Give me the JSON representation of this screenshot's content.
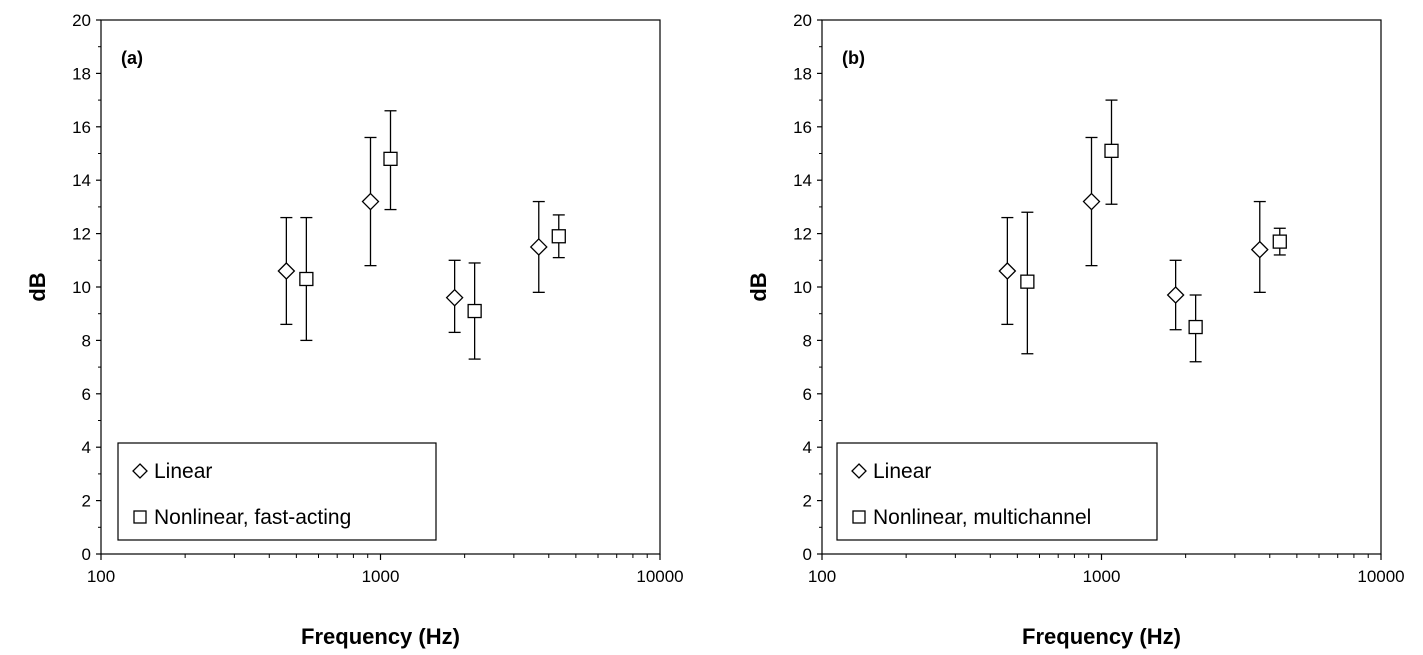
{
  "chart_data": [
    {
      "type": "scatter",
      "panel_label": "(a)",
      "xlabel": "Frequency (Hz)",
      "ylabel": "dB",
      "xscale": "log",
      "xlim": [
        100,
        10000
      ],
      "ylim": [
        0,
        20
      ],
      "x_ticks": [
        "100",
        "1000",
        "10000"
      ],
      "y_ticks": [
        "0",
        "2",
        "4",
        "6",
        "8",
        "10",
        "12",
        "14",
        "16",
        "18",
        "20"
      ],
      "error_bars": true,
      "grid": false,
      "legend_position": "bottom-left",
      "series": [
        {
          "name": "Linear",
          "marker": "diamond",
          "x": [
            500,
            1000,
            2000,
            4000
          ],
          "y": [
            10.6,
            13.2,
            9.6,
            11.5
          ],
          "err_low": [
            8.6,
            10.8,
            8.3,
            9.8
          ],
          "err_high": [
            12.6,
            15.6,
            11.0,
            13.2
          ]
        },
        {
          "name": "Nonlinear, fast-acting",
          "marker": "square",
          "x": [
            500,
            1000,
            2000,
            4000
          ],
          "y": [
            10.3,
            14.8,
            9.1,
            11.9
          ],
          "err_low": [
            8.0,
            12.9,
            7.3,
            11.1
          ],
          "err_high": [
            12.6,
            16.6,
            10.9,
            12.7
          ]
        }
      ]
    },
    {
      "type": "scatter",
      "panel_label": "(b)",
      "xlabel": "Frequency (Hz)",
      "ylabel": "dB",
      "xscale": "log",
      "xlim": [
        100,
        10000
      ],
      "ylim": [
        0,
        20
      ],
      "x_ticks": [
        "100",
        "1000",
        "10000"
      ],
      "y_ticks": [
        "0",
        "2",
        "4",
        "6",
        "8",
        "10",
        "12",
        "14",
        "16",
        "18",
        "20"
      ],
      "error_bars": true,
      "grid": false,
      "legend_position": "bottom-left",
      "series": [
        {
          "name": "Linear",
          "marker": "diamond",
          "x": [
            500,
            1000,
            2000,
            4000
          ],
          "y": [
            10.6,
            13.2,
            9.7,
            11.4
          ],
          "err_low": [
            8.6,
            10.8,
            8.4,
            9.8
          ],
          "err_high": [
            12.6,
            15.6,
            11.0,
            13.2
          ]
        },
        {
          "name": "Nonlinear, multichannel",
          "marker": "square",
          "x": [
            500,
            1000,
            2000,
            4000
          ],
          "y": [
            10.2,
            15.1,
            8.5,
            11.7
          ],
          "err_low": [
            7.5,
            13.1,
            7.2,
            11.2
          ],
          "err_high": [
            12.8,
            17.0,
            9.7,
            12.2
          ]
        }
      ]
    }
  ]
}
